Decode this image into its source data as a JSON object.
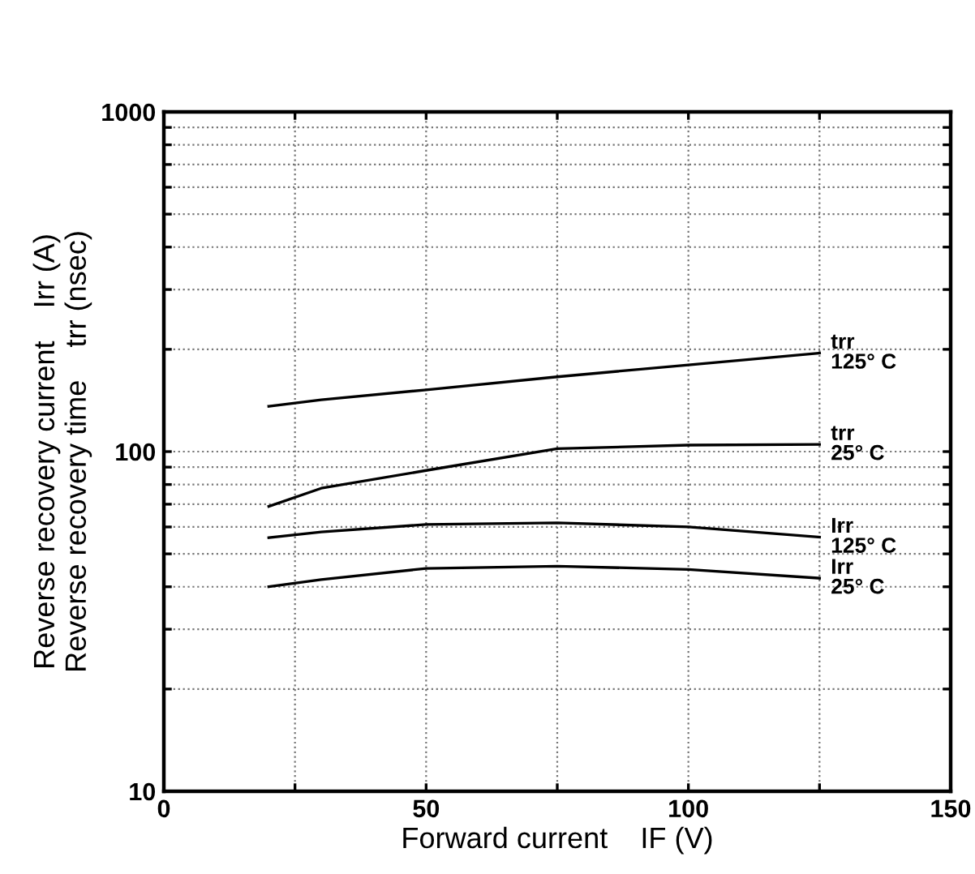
{
  "chart_data": {
    "type": "line",
    "xlabel": "Forward current    IF (V)",
    "ylabel": "Reverse recovery current    Irr (A)\nReverse recovery time    trr (nsec)",
    "log": "y",
    "grid": true,
    "legend": "right",
    "marker": "none",
    "line_style": "solid",
    "xlim": [
      0,
      150
    ],
    "xticks": [
      0,
      {
        "value": 25,
        "label": null
      },
      50,
      {
        "value": 75,
        "label": null
      },
      100,
      {
        "value": 125,
        "label": null
      },
      150
    ],
    "ylim": [
      10,
      1000
    ],
    "yticks": [
      10,
      {
        "value": 20,
        "label": null
      },
      {
        "value": 30,
        "label": null
      },
      {
        "value": 40,
        "label": null
      },
      {
        "value": 50,
        "label": null
      },
      {
        "value": 60,
        "label": null
      },
      {
        "value": 70,
        "label": null
      },
      {
        "value": 80,
        "label": null
      },
      {
        "value": 90,
        "label": null
      },
      100,
      {
        "value": 200,
        "label": null
      },
      {
        "value": 300,
        "label": null
      },
      {
        "value": 400,
        "label": null
      },
      {
        "value": 500,
        "label": null
      },
      {
        "value": 600,
        "label": null
      },
      {
        "value": 700,
        "label": null
      },
      {
        "value": 800,
        "label": null
      },
      {
        "value": 900,
        "label": null
      },
      1000
    ],
    "x": [
      20,
      30,
      50,
      75,
      100,
      125
    ],
    "series": [
      {
        "name": "trr\n125° C",
        "color": "#000000",
        "values": [
          136,
          142,
          152,
          166,
          180,
          195
        ]
      },
      {
        "name": "trr\n25° C",
        "color": "#000000",
        "values": [
          69,
          78,
          88,
          102,
          104.5,
          105
        ]
      },
      {
        "name": "Irr\n125° C",
        "color": "#000000",
        "values": [
          55.8,
          58,
          61,
          61.7,
          60,
          56
        ]
      },
      {
        "name": "Irr\n25° C",
        "color": "#000000",
        "values": [
          40,
          42,
          45.3,
          46,
          45,
          42.4
        ]
      }
    ]
  }
}
